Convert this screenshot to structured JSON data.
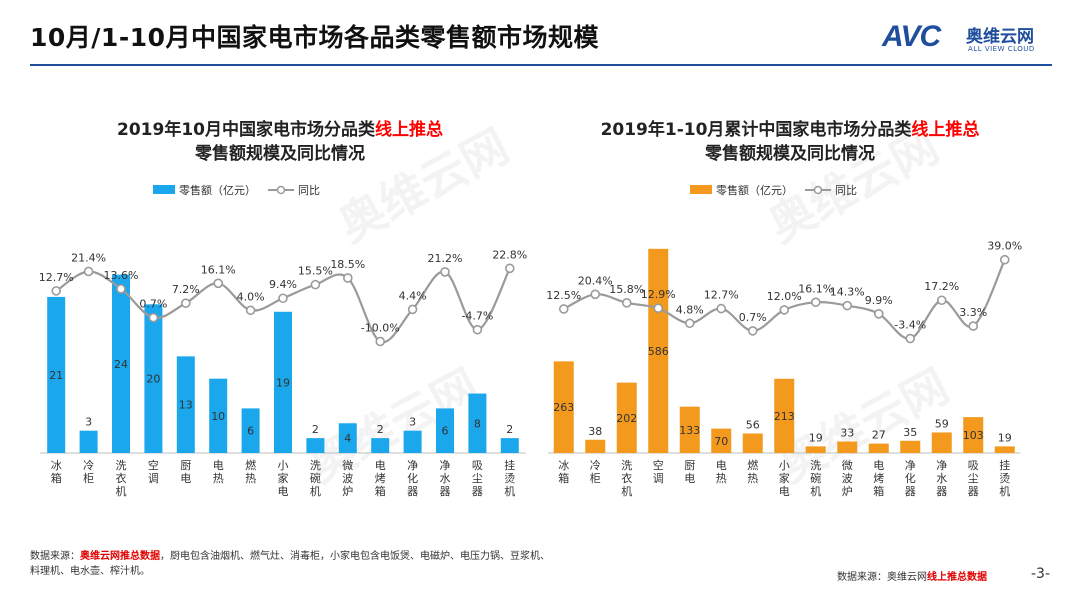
{
  "page": {
    "title": "10月/1-10月中国家电市场各品类零售额市场规模",
    "page_number": "-3-"
  },
  "logo": {
    "brand_letters": "AVC",
    "brand_cn": "奥维云网",
    "brand_en": "ALL VIEW CLOUD"
  },
  "watermark": "奥维云网",
  "footnote": {
    "prefix": "数据来源：",
    "source": "奥维云网推总数据",
    "text": "，厨电包含油烟机、燃气灶、消毒柜，小家电包含电饭煲、电磁炉、电压力锅、豆浆机、料理机、电水壶、榨汁机。"
  },
  "source_right": {
    "prefix": "数据来源：奥维云网",
    "highlight": "线上推总数据"
  },
  "colors": {
    "bar_left": "#1aa7ec",
    "bar_right": "#f39a1e",
    "line": "#9a9a9a",
    "marker_fill": "#ffffff",
    "highlight": "#ff0000"
  },
  "chart_data": [
    {
      "type": "bar",
      "title_part1": "2019年10月中国家电市场分品类",
      "title_highlight": "线上推总",
      "title_line2": "零售额规模及同比情况",
      "categories": [
        "冰箱",
        "冷柜",
        "洗衣机",
        "空调",
        "厨电",
        "电热",
        "燃热",
        "小家电",
        "洗碗机",
        "微波炉",
        "电烤箱",
        "净化器",
        "净水器",
        "吸尘器",
        "挂烫机"
      ],
      "series": [
        {
          "name": "零售额（亿元）",
          "type": "bar",
          "values": [
            21,
            3,
            24,
            20,
            13,
            10,
            6,
            19,
            2,
            4,
            2,
            3,
            6,
            8,
            2
          ]
        },
        {
          "name": "同比",
          "type": "line",
          "values": [
            12.7,
            21.4,
            13.6,
            0.7,
            7.2,
            16.1,
            4.0,
            9.4,
            15.5,
            18.5,
            -10.0,
            4.4,
            21.2,
            -4.7,
            22.8
          ]
        }
      ],
      "bar_labels": [
        "21",
        "3",
        "24",
        "20",
        "13",
        "10",
        "6",
        "19",
        "2",
        "4",
        "2",
        "3",
        "6",
        "8",
        "2"
      ],
      "line_labels": [
        "12.7%",
        "21.4%",
        "13.6%",
        "0.7%",
        "7.2%",
        "16.1%",
        "4.0%",
        "9.4%",
        "15.5%",
        "18.5%",
        "-10.0%",
        "4.4%",
        "21.2%",
        "-4.7%",
        "22.8%"
      ],
      "bar_ylim": [
        0,
        30
      ],
      "line_ylim": [
        -60,
        40
      ]
    },
    {
      "type": "bar",
      "title_part1": "2019年1-10月累计中国家电市场分品类",
      "title_highlight": "线上推总",
      "title_line2": "零售额规模及同比情况",
      "categories": [
        "冰箱",
        "冷柜",
        "洗衣机",
        "空调",
        "厨电",
        "电热",
        "燃热",
        "小家电",
        "洗碗机",
        "微波炉",
        "电烤箱",
        "净化器",
        "净水器",
        "吸尘器",
        "挂烫机"
      ],
      "series": [
        {
          "name": "零售额（亿元）",
          "type": "bar",
          "values": [
            263,
            38,
            202,
            586,
            133,
            70,
            56,
            213,
            19,
            33,
            27,
            35,
            59,
            103,
            19
          ]
        },
        {
          "name": "同比",
          "type": "line",
          "values": [
            12.5,
            20.4,
            15.8,
            12.9,
            4.8,
            12.7,
            0.7,
            12.0,
            16.1,
            14.3,
            9.9,
            -3.4,
            17.2,
            3.3,
            39.0
          ]
        }
      ],
      "bar_labels": [
        "263",
        "38",
        "202",
        "586",
        "133",
        "70",
        "56",
        "213",
        "19",
        "33",
        "27",
        "35",
        "59",
        "103",
        "19"
      ],
      "line_labels": [
        "12.5%",
        "20.4%",
        "15.8%",
        "12.9%",
        "4.8%",
        "12.7%",
        "0.7%",
        "12.0%",
        "16.1%",
        "14.3%",
        "9.9%",
        "-3.4%",
        "17.2%",
        "3.3%",
        "39.0%"
      ],
      "bar_ylim": [
        0,
        640
      ],
      "line_ylim": [
        -65,
        55
      ]
    }
  ]
}
